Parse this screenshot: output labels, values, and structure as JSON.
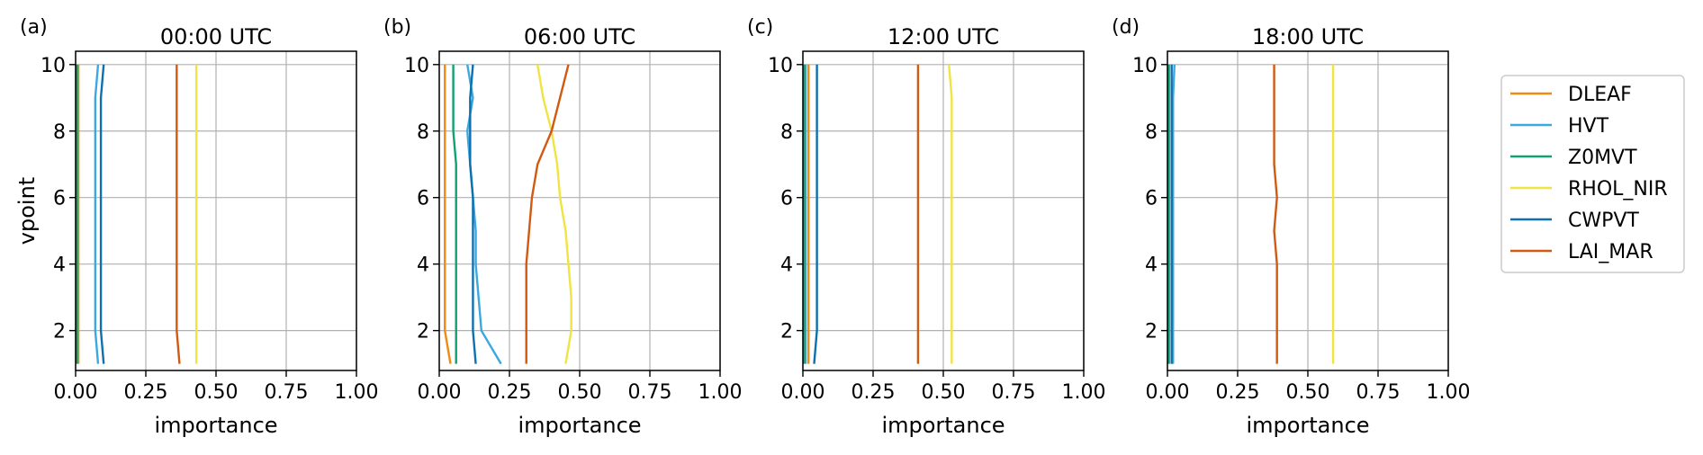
{
  "chart_data": [
    {
      "type": "line",
      "label": "(a)",
      "title": "00:00 UTC",
      "xlabel": "importance",
      "ylabel": "vpoint",
      "xlim": [
        0,
        1
      ],
      "ylim": [
        0.8,
        10.4
      ],
      "xticks": [
        "0.00",
        "0.25",
        "0.50",
        "0.75",
        "1.00"
      ],
      "yticks": [
        "2",
        "4",
        "6",
        "8",
        "10"
      ],
      "grid": true,
      "y": [
        1,
        2,
        3,
        4,
        5,
        6,
        7,
        8,
        9,
        10
      ],
      "series": [
        {
          "name": "DLEAF",
          "x": [
            0.01,
            0.01,
            0.01,
            0.01,
            0.01,
            0.01,
            0.01,
            0.01,
            0.01,
            0.01
          ]
        },
        {
          "name": "HVT",
          "x": [
            0.08,
            0.07,
            0.07,
            0.07,
            0.07,
            0.07,
            0.07,
            0.07,
            0.07,
            0.08
          ]
        },
        {
          "name": "Z0MVT",
          "x": [
            0.005,
            0.005,
            0.005,
            0.005,
            0.005,
            0.005,
            0.005,
            0.005,
            0.005,
            0.005
          ]
        },
        {
          "name": "RHOL_NIR",
          "x": [
            0.43,
            0.43,
            0.43,
            0.43,
            0.43,
            0.43,
            0.43,
            0.43,
            0.43,
            0.43
          ]
        },
        {
          "name": "CWPVT",
          "x": [
            0.1,
            0.09,
            0.09,
            0.09,
            0.09,
            0.09,
            0.09,
            0.09,
            0.09,
            0.1
          ]
        },
        {
          "name": "LAI_MAR",
          "x": [
            0.37,
            0.36,
            0.36,
            0.36,
            0.36,
            0.36,
            0.36,
            0.36,
            0.36,
            0.36
          ]
        }
      ]
    },
    {
      "type": "line",
      "label": "(b)",
      "title": "06:00 UTC",
      "xlabel": "importance",
      "ylabel": "",
      "xlim": [
        0,
        1
      ],
      "ylim": [
        0.8,
        10.4
      ],
      "xticks": [
        "0.00",
        "0.25",
        "0.50",
        "0.75",
        "1.00"
      ],
      "yticks": [
        "2",
        "4",
        "6",
        "8",
        "10"
      ],
      "grid": true,
      "y": [
        1,
        2,
        3,
        4,
        5,
        6,
        7,
        8,
        9,
        10
      ],
      "series": [
        {
          "name": "DLEAF",
          "x": [
            0.04,
            0.02,
            0.02,
            0.02,
            0.02,
            0.02,
            0.02,
            0.02,
            0.02,
            0.02
          ]
        },
        {
          "name": "HVT",
          "x": [
            0.22,
            0.15,
            0.14,
            0.13,
            0.13,
            0.12,
            0.11,
            0.1,
            0.12,
            0.1
          ]
        },
        {
          "name": "Z0MVT",
          "x": [
            0.06,
            0.06,
            0.06,
            0.06,
            0.06,
            0.06,
            0.06,
            0.05,
            0.05,
            0.05
          ]
        },
        {
          "name": "RHOL_NIR",
          "x": [
            0.45,
            0.47,
            0.47,
            0.46,
            0.45,
            0.43,
            0.42,
            0.4,
            0.37,
            0.35
          ]
        },
        {
          "name": "CWPVT",
          "x": [
            0.13,
            0.12,
            0.12,
            0.12,
            0.12,
            0.12,
            0.11,
            0.11,
            0.11,
            0.12
          ]
        },
        {
          "name": "LAI_MAR",
          "x": [
            0.31,
            0.31,
            0.31,
            0.31,
            0.32,
            0.33,
            0.35,
            0.4,
            0.43,
            0.46
          ]
        }
      ]
    },
    {
      "type": "line",
      "label": "(c)",
      "title": "12:00 UTC",
      "xlabel": "importance",
      "ylabel": "",
      "xlim": [
        0,
        1
      ],
      "ylim": [
        0.8,
        10.4
      ],
      "xticks": [
        "0.00",
        "0.25",
        "0.50",
        "0.75",
        "1.00"
      ],
      "yticks": [
        "2",
        "4",
        "6",
        "8",
        "10"
      ],
      "grid": true,
      "y": [
        1,
        2,
        3,
        4,
        5,
        6,
        7,
        8,
        9,
        10
      ],
      "series": [
        {
          "name": "DLEAF",
          "x": [
            0.02,
            0.02,
            0.02,
            0.02,
            0.02,
            0.02,
            0.02,
            0.02,
            0.02,
            0.02
          ]
        },
        {
          "name": "HVT",
          "x": [
            0.01,
            0.01,
            0.01,
            0.01,
            0.01,
            0.01,
            0.01,
            0.01,
            0.01,
            0.01
          ]
        },
        {
          "name": "Z0MVT",
          "x": [
            0.005,
            0.005,
            0.005,
            0.005,
            0.005,
            0.005,
            0.005,
            0.005,
            0.005,
            0.005
          ]
        },
        {
          "name": "RHOL_NIR",
          "x": [
            0.53,
            0.53,
            0.53,
            0.53,
            0.53,
            0.53,
            0.53,
            0.53,
            0.53,
            0.52
          ]
        },
        {
          "name": "CWPVT",
          "x": [
            0.04,
            0.05,
            0.05,
            0.05,
            0.05,
            0.05,
            0.05,
            0.05,
            0.05,
            0.05
          ]
        },
        {
          "name": "LAI_MAR",
          "x": [
            0.41,
            0.41,
            0.41,
            0.41,
            0.41,
            0.41,
            0.41,
            0.41,
            0.41,
            0.41
          ]
        }
      ]
    },
    {
      "type": "line",
      "label": "(d)",
      "title": "18:00 UTC",
      "xlabel": "importance",
      "ylabel": "",
      "xlim": [
        0,
        1
      ],
      "ylim": [
        0.8,
        10.4
      ],
      "xticks": [
        "0.00",
        "0.25",
        "0.50",
        "0.75",
        "1.00"
      ],
      "yticks": [
        "2",
        "4",
        "6",
        "8",
        "10"
      ],
      "grid": true,
      "y": [
        1,
        2,
        3,
        4,
        5,
        6,
        7,
        8,
        9,
        10
      ],
      "series": [
        {
          "name": "DLEAF",
          "x": [
            0.005,
            0.005,
            0.005,
            0.005,
            0.005,
            0.005,
            0.005,
            0.005,
            0.005,
            0.005
          ]
        },
        {
          "name": "HVT",
          "x": [
            0.02,
            0.02,
            0.02,
            0.02,
            0.02,
            0.02,
            0.02,
            0.02,
            0.02,
            0.025
          ]
        },
        {
          "name": "Z0MVT",
          "x": [
            0.005,
            0.005,
            0.005,
            0.005,
            0.005,
            0.005,
            0.005,
            0.005,
            0.005,
            0.005
          ]
        },
        {
          "name": "RHOL_NIR",
          "x": [
            0.59,
            0.59,
            0.59,
            0.59,
            0.59,
            0.59,
            0.59,
            0.59,
            0.59,
            0.59
          ]
        },
        {
          "name": "CWPVT",
          "x": [
            0.015,
            0.015,
            0.015,
            0.015,
            0.015,
            0.015,
            0.015,
            0.015,
            0.015,
            0.015
          ]
        },
        {
          "name": "LAI_MAR",
          "x": [
            0.39,
            0.39,
            0.39,
            0.39,
            0.38,
            0.39,
            0.38,
            0.38,
            0.38,
            0.38
          ]
        }
      ]
    }
  ],
  "legend": {
    "placement": "right",
    "entries": [
      {
        "name": "DLEAF",
        "color": "#EE8B10"
      },
      {
        "name": "HVT",
        "color": "#3BA8DF"
      },
      {
        "name": "Z0MVT",
        "color": "#12A173"
      },
      {
        "name": "RHOL_NIR",
        "color": "#F0E442"
      },
      {
        "name": "CWPVT",
        "color": "#0F70B0"
      },
      {
        "name": "LAI_MAR",
        "color": "#D05A12"
      }
    ]
  }
}
